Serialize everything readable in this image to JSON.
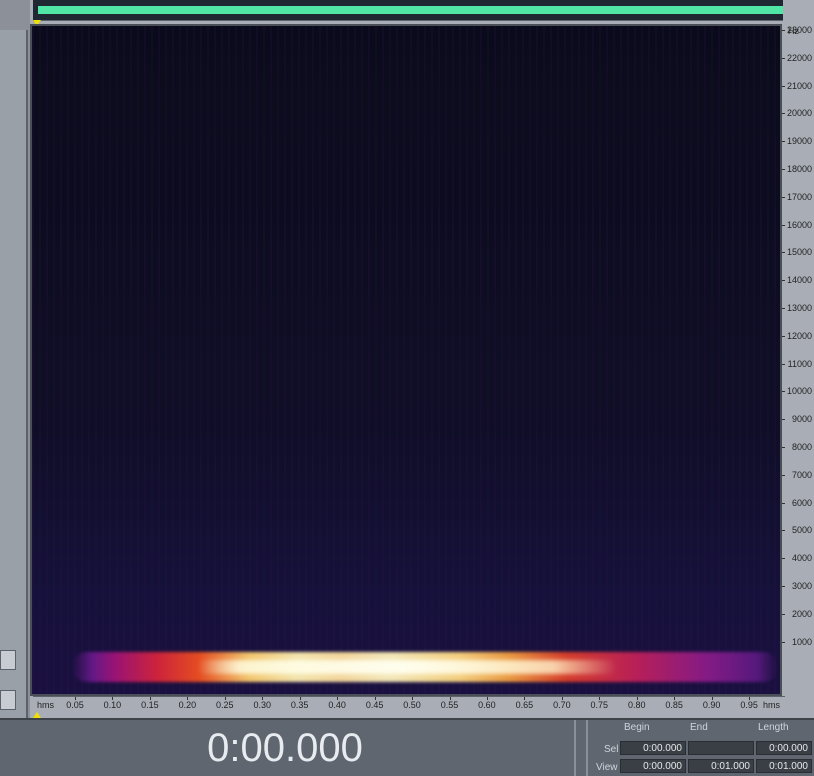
{
  "hz_axis": {
    "unit": "Hz",
    "ticks": [
      "23000",
      "22000",
      "21000",
      "20000",
      "19000",
      "18000",
      "17000",
      "16000",
      "15000",
      "14000",
      "13000",
      "12000",
      "11000",
      "10000",
      "9000",
      "8000",
      "7000",
      "6000",
      "5000",
      "4000",
      "3000",
      "2000",
      "1000"
    ]
  },
  "time_axis": {
    "left_unit": "hms",
    "right_unit": "hms",
    "ticks": [
      "0.05",
      "0.10",
      "0.15",
      "0.20",
      "0.25",
      "0.30",
      "0.35",
      "0.40",
      "0.45",
      "0.50",
      "0.55",
      "0.60",
      "0.65",
      "0.70",
      "0.75",
      "0.80",
      "0.85",
      "0.90",
      "0.95"
    ]
  },
  "time_display": "0:00.000",
  "selection": {
    "headers": {
      "begin": "Begin",
      "end": "End",
      "length": "Length"
    },
    "sel": {
      "label": "Sel",
      "begin": "0:00.000",
      "end": "",
      "length": "0:00.000"
    },
    "view": {
      "label": "View",
      "begin": "0:00.000",
      "end": "0:01.000",
      "length": "0:01.000"
    }
  },
  "colors": {
    "waveform": "#52e6a6",
    "marker": "#f0e000",
    "background": "#0d0d1d"
  }
}
